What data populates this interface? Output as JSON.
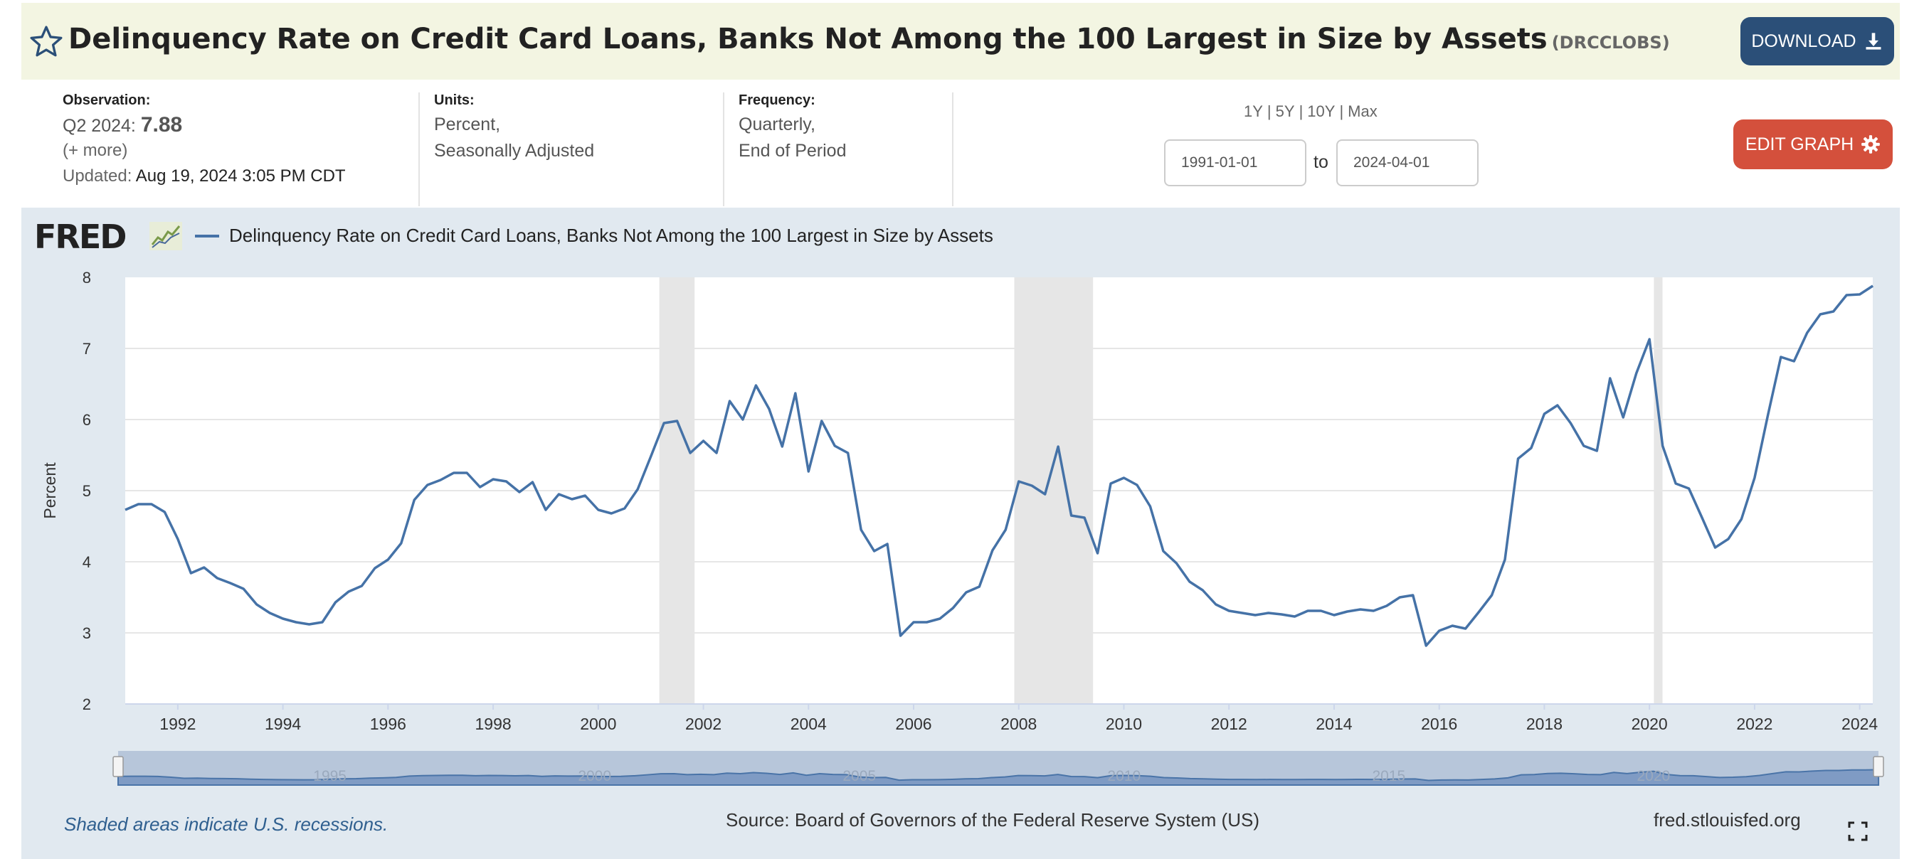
{
  "header": {
    "title": "Delinquency Rate on Credit Card Loans, Banks Not Among the 100 Largest in Size by Assets",
    "series_id": "(DRCCLOBS)",
    "download_label": "DOWNLOAD",
    "star_icon": "star-outline-icon",
    "download_icon": "download-icon"
  },
  "meta": {
    "observation_label": "Observation:",
    "observation_period": "Q2 2024:",
    "observation_value": "7.88",
    "more_label": "(+ more)",
    "updated_label": "Updated:",
    "updated_value": "Aug 19, 2024 3:05 PM CDT",
    "units_label": "Units:",
    "units_line1": "Percent,",
    "units_line2": "Seasonally Adjusted",
    "frequency_label": "Frequency:",
    "frequency_line1": "Quarterly,",
    "frequency_line2": "End of Period"
  },
  "controls": {
    "ranges": [
      "1Y",
      "5Y",
      "10Y",
      "Max"
    ],
    "date_start": "1991-01-01",
    "to_label": "to",
    "date_end": "2024-04-01",
    "edit_label": "EDIT GRAPH",
    "edit_icon": "gear-icon"
  },
  "footer": {
    "recession_note": "Shaded areas indicate U.S. recessions.",
    "source": "Source: Board of Governors of the Federal Reserve System (US)",
    "site": "fred.stlouisfed.org",
    "fullscreen_icon": "fullscreen-icon"
  },
  "brand": {
    "logo_text": "FRED",
    "line_color": "#4572a7",
    "download_color": "#2b4f78",
    "edit_color": "#d4503c",
    "panel_color": "#e1e9f0",
    "recession_color": "#e6e6e6"
  },
  "chart_data": {
    "type": "line",
    "title": "",
    "xlabel": "",
    "ylabel": "Percent",
    "ylim": [
      2,
      8
    ],
    "xlim": [
      "1991-01-01",
      "2024-04-01"
    ],
    "y_ticks": [
      2,
      3,
      4,
      5,
      6,
      7,
      8
    ],
    "x_ticks": [
      "1992",
      "1994",
      "1996",
      "1998",
      "2000",
      "2002",
      "2004",
      "2006",
      "2008",
      "2010",
      "2012",
      "2014",
      "2016",
      "2018",
      "2020",
      "2022",
      "2024"
    ],
    "navigator_labels": [
      "1995",
      "2000",
      "2005",
      "2010",
      "2015",
      "2020"
    ],
    "grid": true,
    "legend_position": "top-left",
    "recessions": [
      [
        "2001-03-01",
        "2001-11-01"
      ],
      [
        "2007-12-01",
        "2009-06-01"
      ],
      [
        "2020-02-01",
        "2020-04-01"
      ]
    ],
    "series": [
      {
        "name": "Delinquency Rate on Credit Card Loans, Banks Not Among the 100 Largest in Size by Assets",
        "color": "#4572a7",
        "start": "1991-01-01",
        "frequency": "quarterly",
        "values": [
          4.73,
          4.81,
          4.81,
          4.7,
          4.32,
          3.84,
          3.92,
          3.77,
          3.7,
          3.62,
          3.4,
          3.28,
          3.2,
          3.15,
          3.12,
          3.15,
          3.43,
          3.58,
          3.66,
          3.91,
          4.03,
          4.26,
          4.87,
          5.08,
          5.15,
          5.25,
          5.25,
          5.05,
          5.16,
          5.13,
          4.98,
          5.12,
          4.73,
          4.95,
          4.88,
          4.93,
          4.73,
          4.68,
          4.75,
          5.02,
          5.48,
          5.95,
          5.98,
          5.53,
          5.7,
          5.53,
          6.26,
          6.0,
          6.48,
          6.15,
          5.62,
          6.37,
          5.27,
          5.98,
          5.63,
          5.53,
          4.45,
          4.15,
          4.25,
          2.96,
          3.15,
          3.15,
          3.2,
          3.35,
          3.57,
          3.65,
          4.16,
          4.45,
          5.13,
          5.07,
          4.95,
          5.62,
          4.65,
          4.62,
          4.12,
          5.1,
          5.18,
          5.08,
          4.78,
          4.15,
          3.98,
          3.72,
          3.6,
          3.4,
          3.31,
          3.28,
          3.25,
          3.28,
          3.26,
          3.23,
          3.31,
          3.31,
          3.25,
          3.3,
          3.33,
          3.31,
          3.38,
          3.5,
          3.53,
          2.82,
          3.03,
          3.1,
          3.06,
          3.29,
          3.53,
          4.03,
          5.45,
          5.6,
          6.08,
          6.2,
          5.95,
          5.63,
          5.56,
          6.58,
          6.03,
          6.65,
          7.13,
          5.63,
          5.1,
          5.03,
          4.62,
          4.2,
          4.32,
          4.6,
          5.18,
          6.05,
          6.88,
          6.82,
          7.22,
          7.48,
          7.52,
          7.75,
          7.76,
          7.88
        ]
      }
    ]
  }
}
